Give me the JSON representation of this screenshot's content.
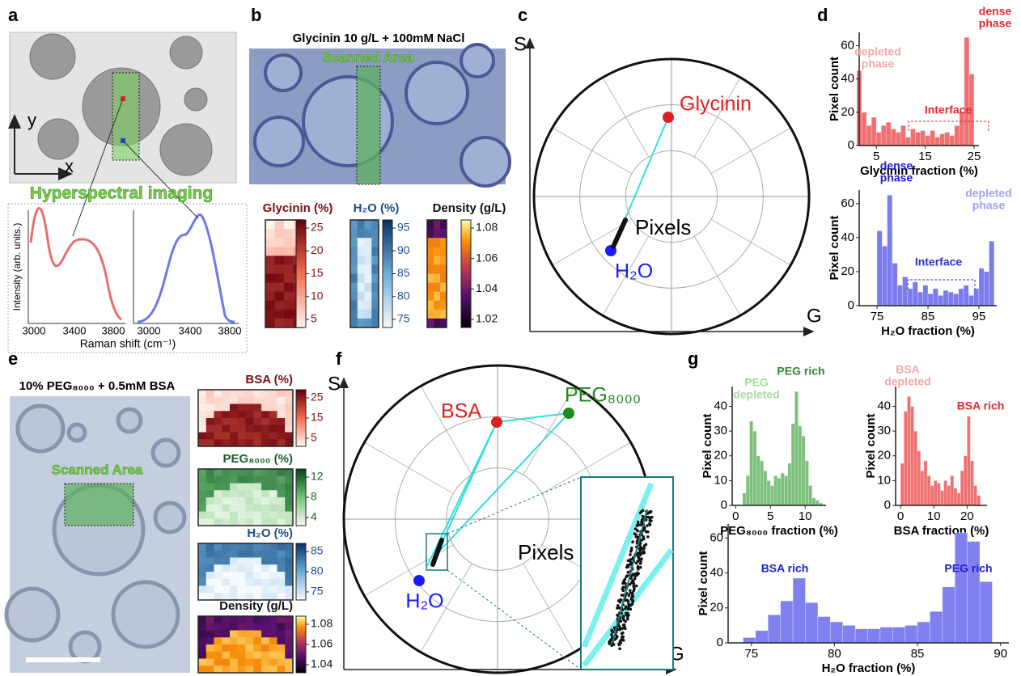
{
  "panels": {
    "a": {
      "label": "a",
      "y": "y",
      "x": "x",
      "title": "Hyperspectral imaging",
      "spectra_ylabel": "Intensity (arb. units.)",
      "spectra_xlabel": "Raman shift (cm⁻¹)",
      "spectra_xticks": [
        [
          3000,
          3400,
          3800
        ],
        [
          3000,
          3400,
          3800
        ]
      ]
    },
    "b": {
      "label": "b",
      "title": "Glycinin 10 g/L + 100mM NaCl",
      "scanned": "Scanned Area",
      "colorbars": [
        {
          "title": "Glycinin (%)",
          "color": "#7a1010",
          "ticks": [
            25,
            20,
            15,
            10,
            5
          ]
        },
        {
          "title": "H₂O (%)",
          "color": "#1f4e8c",
          "ticks": [
            95,
            90,
            85,
            80,
            75
          ]
        },
        {
          "title": "Density (g/L)",
          "color": "#111111",
          "ticks": [
            1.08,
            1.06,
            1.04,
            1.02
          ]
        }
      ]
    },
    "c": {
      "label": "c",
      "s_axis": "S",
      "g_axis": "G",
      "points": [
        {
          "name": "Glycinin",
          "color": "#e02020"
        },
        {
          "name": "H₂O",
          "color": "#1a1aff"
        }
      ],
      "pixels": "Pixels"
    },
    "d": {
      "label": "d"
    },
    "e": {
      "label": "e",
      "title": "10% PEG₈₀₀₀ + 0.5mM BSA",
      "scanned": "Scanned Area",
      "colorbars": [
        {
          "title": "BSA (%)",
          "color": "#7a1010",
          "ticks": [
            25,
            15,
            5
          ]
        },
        {
          "title": "PEG₈₀₀₀ (%)",
          "color": "#1d5e2a",
          "ticks": [
            12,
            8,
            4
          ]
        },
        {
          "title": "H₂O (%)",
          "color": "#1f4e8c",
          "ticks": [
            85,
            80,
            75
          ]
        },
        {
          "title": "Density (g/L)",
          "color": "#111111",
          "ticks": [
            1.08,
            1.06,
            1.04
          ]
        }
      ]
    },
    "f": {
      "label": "f",
      "s_axis": "S",
      "g_axis": "G",
      "points": [
        {
          "name": "BSA",
          "color": "#e02020"
        },
        {
          "name": "PEG₈₀₀₀",
          "color": "#1e8a1e"
        },
        {
          "name": "H₂O",
          "color": "#1a1aff"
        }
      ],
      "pixels": "Pixels"
    },
    "g": {
      "label": "g"
    }
  },
  "chart_data": [
    {
      "type": "histogram",
      "xlabel": "Glycinin fraction (%)",
      "ylabel": "Pixel count",
      "color": "#f07070",
      "bins": [
        1,
        2,
        3,
        4,
        5,
        6,
        7,
        8,
        9,
        10,
        11,
        12,
        13,
        14,
        15,
        16,
        17,
        18,
        19,
        20,
        21,
        22,
        23,
        24,
        25
      ],
      "values": [
        45,
        20,
        12,
        17,
        8,
        12,
        14,
        10,
        8,
        12,
        5,
        10,
        8,
        9,
        6,
        9,
        5,
        7,
        8,
        6,
        12,
        20,
        65,
        43
      ],
      "xlim": [
        1.5,
        26
      ],
      "ylim": [
        0,
        68
      ],
      "xticks": [
        5,
        15,
        25
      ],
      "yticks": [
        0,
        20,
        40,
        60
      ],
      "annotations": [
        {
          "text": [
            "dense",
            "phase"
          ],
          "color": "#e8282c"
        },
        {
          "text": [
            "depleted",
            "phase"
          ],
          "color": "#f4a6a6"
        },
        {
          "text": [
            "Interface"
          ],
          "color": "#e8282c"
        }
      ]
    },
    {
      "type": "histogram",
      "xlabel": "H₂O fraction (%)",
      "ylabel": "Pixel count",
      "color": "#7b7bf0",
      "bins": [
        75,
        76,
        77,
        78,
        79,
        80,
        81,
        82,
        83,
        84,
        85,
        86,
        87,
        88,
        89,
        90,
        91,
        92,
        93,
        94,
        95,
        96,
        97,
        98
      ],
      "values": [
        44,
        35,
        65,
        25,
        12,
        17,
        10,
        14,
        8,
        12,
        7,
        10,
        6,
        9,
        8,
        7,
        10,
        12,
        6,
        10,
        22,
        20,
        38
      ],
      "xlim": [
        71.5,
        98.5
      ],
      "ylim": [
        0,
        68
      ],
      "xticks": [
        75,
        85,
        95
      ],
      "yticks": [
        0,
        20,
        40,
        60
      ],
      "annotations": [
        {
          "text": [
            "dense",
            "phase"
          ],
          "color": "#2020d0"
        },
        {
          "text": [
            "depleted",
            "phase"
          ],
          "color": "#a0a0f0"
        },
        {
          "text": [
            "Interface"
          ],
          "color": "#3030d0"
        }
      ]
    },
    {
      "type": "histogram",
      "xlabel": "PEG₈₀₀₀ fraction (%)",
      "ylabel": "Pixel count",
      "color": "#7cc07c",
      "bins": [
        1,
        1.5,
        2,
        2.5,
        3,
        3.5,
        4,
        4.5,
        5,
        5.5,
        6,
        6.5,
        7,
        7.5,
        8,
        8.5,
        9,
        9.5,
        10,
        10.5,
        11,
        11.5,
        12,
        12.5
      ],
      "values": [
        5,
        12,
        34,
        30,
        20,
        18,
        14,
        10,
        8,
        12,
        11,
        13,
        12,
        17,
        33,
        46,
        32,
        28,
        18,
        8,
        3,
        2,
        1
      ],
      "xlim": [
        -0.5,
        13
      ],
      "ylim": [
        0,
        48
      ],
      "xticks": [
        0,
        5,
        10
      ],
      "yticks": [
        0,
        10,
        20,
        30,
        40
      ],
      "annotations": [
        {
          "text": [
            "PEG rich"
          ],
          "color": "#2e8b2e"
        },
        {
          "text": [
            "PEG",
            "depleted"
          ],
          "color": "#a8d8a0"
        }
      ]
    },
    {
      "type": "histogram",
      "xlabel": "BSA fraction (%)",
      "ylabel": "Pixel count",
      "color": "#f07070",
      "bins": [
        0,
        1,
        2,
        3,
        4,
        5,
        6,
        7,
        8,
        9,
        10,
        11,
        12,
        13,
        14,
        15,
        16,
        17,
        18,
        19,
        20,
        21,
        22,
        23,
        24
      ],
      "values": [
        17,
        38,
        44,
        40,
        30,
        22,
        14,
        18,
        12,
        8,
        10,
        9,
        6,
        10,
        8,
        12,
        7,
        5,
        14,
        20,
        36,
        18,
        8,
        4
      ],
      "xlim": [
        -1.5,
        26
      ],
      "ylim": [
        0,
        48
      ],
      "xticks": [
        0,
        10,
        20
      ],
      "yticks": [
        0,
        10,
        20,
        30,
        40
      ],
      "annotations": [
        {
          "text": [
            "BSA",
            "depleted"
          ],
          "color": "#f4a6a6"
        },
        {
          "text": [
            "BSA rich"
          ],
          "color": "#e8282c"
        }
      ]
    },
    {
      "type": "histogram",
      "xlabel": "H₂O fraction (%)",
      "ylabel": "Pixel count",
      "color": "#8080f0",
      "bins": [
        74.5,
        75.25,
        76,
        76.75,
        77.5,
        78.25,
        79,
        79.75,
        80.5,
        81.25,
        82,
        82.75,
        83.5,
        84.25,
        85,
        85.75,
        86.5,
        87.25,
        88,
        88.75,
        89.5
      ],
      "values": [
        3,
        7,
        16,
        24,
        37,
        23,
        15,
        12,
        10,
        8,
        8,
        9,
        9,
        10,
        12,
        18,
        32,
        63,
        58,
        35
      ],
      "xlim": [
        73.6,
        90.5
      ],
      "ylim": [
        0,
        68
      ],
      "xticks": [
        75,
        80,
        85,
        90
      ],
      "yticks": [
        0,
        20,
        40,
        60
      ],
      "annotations": [
        {
          "text": [
            "BSA rich"
          ],
          "color": "#2020d0"
        },
        {
          "text": [
            "PEG rich"
          ],
          "color": "#2020d0"
        }
      ]
    }
  ]
}
